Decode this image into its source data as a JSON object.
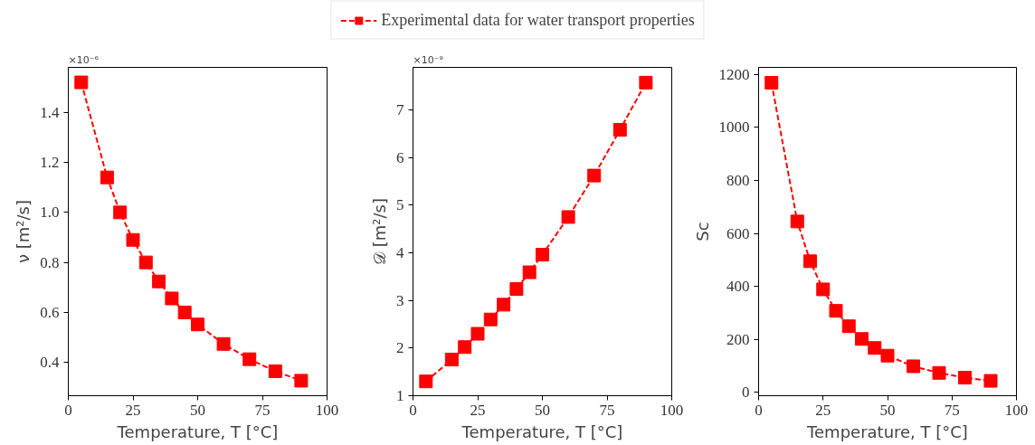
{
  "chart_data": [
    {
      "type": "line",
      "xlabel": "Temperature, T [°C]",
      "ylabel": "ν [m²/s]",
      "annotations": [
        "×10⁻⁶"
      ],
      "marker": "square",
      "line_style": "dashed",
      "legend": "top",
      "grid": false,
      "x": [
        5,
        15,
        20,
        25,
        30,
        35,
        40,
        45,
        50,
        60,
        70,
        80,
        90
      ],
      "series": [
        {
          "name": "Experimental data for water transport properties",
          "color": "#ff0000",
          "values": [
            1.52,
            1.14,
            1.0,
            0.89,
            0.8,
            0.724,
            0.656,
            0.6,
            0.552,
            0.474,
            0.413,
            0.365,
            0.327
          ]
        }
      ],
      "xlim": [
        0,
        100
      ],
      "xticks": [
        0,
        25,
        50,
        75,
        100
      ],
      "ylim": [
        0.267,
        1.58
      ],
      "yticks": [
        {
          "value": 0.4,
          "label": "0.4"
        },
        {
          "value": 0.6,
          "label": "0.6"
        },
        {
          "value": 0.8,
          "label": "0.8"
        },
        {
          "value": 1.0,
          "label": "1.0"
        },
        {
          "value": 1.2,
          "label": "1.2"
        },
        {
          "value": 1.4,
          "label": "1.4"
        }
      ]
    },
    {
      "type": "line",
      "xlabel": "Temperature, T [°C]",
      "ylabel": "𝒟 [m²/s]",
      "annotations": [
        "×10⁻⁹"
      ],
      "marker": "square",
      "line_style": "dashed",
      "grid": false,
      "x": [
        5,
        15,
        20,
        25,
        30,
        35,
        40,
        45,
        50,
        60,
        70,
        80,
        90
      ],
      "series": [
        {
          "color": "#ff0000",
          "values": [
            1.3,
            1.76,
            2.02,
            2.3,
            2.6,
            2.91,
            3.24,
            3.59,
            3.96,
            4.75,
            5.62,
            6.58,
            7.57
          ]
        }
      ],
      "xlim": [
        0,
        100
      ],
      "xticks": [
        0,
        25,
        50,
        75,
        100
      ],
      "ylim": [
        1.0,
        7.89
      ],
      "yticks": [
        1,
        2,
        3,
        4,
        5,
        6,
        7
      ]
    },
    {
      "type": "line",
      "xlabel": "Temperature, T [°C]",
      "ylabel": "Sc",
      "marker": "square",
      "line_style": "dashed",
      "grid": false,
      "x": [
        5,
        15,
        20,
        25,
        30,
        35,
        40,
        45,
        50,
        60,
        70,
        80,
        90
      ],
      "series": [
        {
          "color": "#ff0000",
          "values": [
            1168,
            645,
            495,
            389,
            308,
            250,
            202,
            168,
            139,
            99,
            74,
            56,
            44
          ]
        }
      ],
      "xlim": [
        0,
        100
      ],
      "xticks": [
        0,
        25,
        50,
        75,
        100
      ],
      "ylim": [
        -12,
        1226
      ],
      "yticks": [
        0,
        200,
        400,
        600,
        800,
        1000,
        1200
      ]
    }
  ]
}
